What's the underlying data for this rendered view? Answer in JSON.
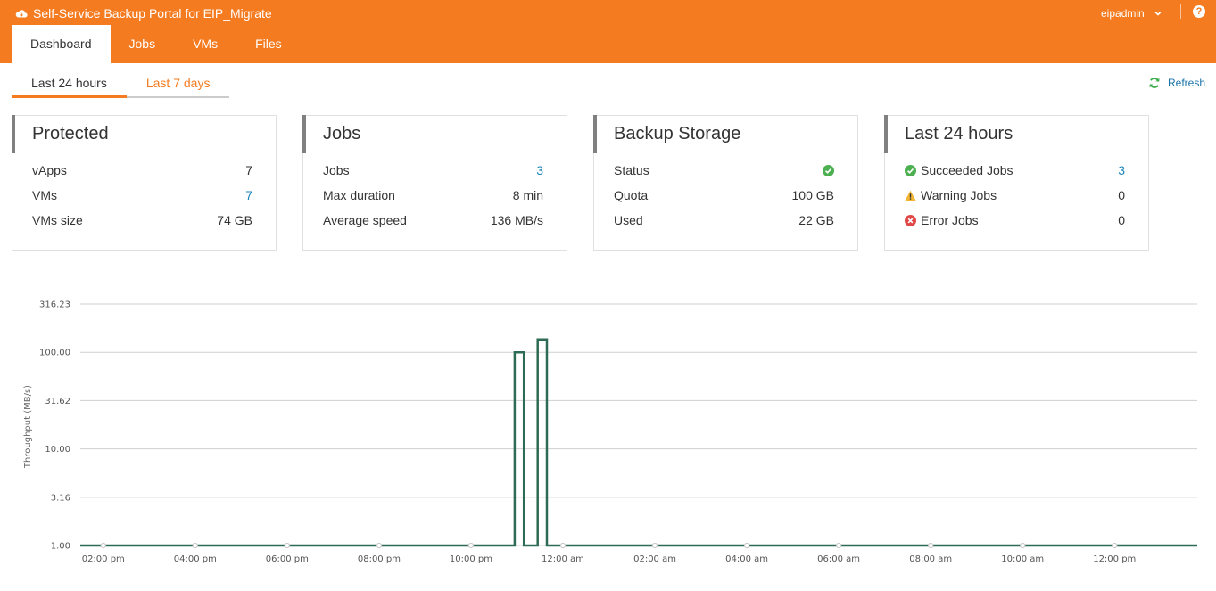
{
  "header": {
    "title": "Self-Service Backup Portal for EIP_Migrate",
    "user": "eipadmin",
    "help": "?",
    "tabs": [
      {
        "label": "Dashboard",
        "active": true
      },
      {
        "label": "Jobs"
      },
      {
        "label": "VMs"
      },
      {
        "label": "Files"
      }
    ]
  },
  "subtabs": [
    {
      "label": "Last 24 hours",
      "active": true
    },
    {
      "label": "Last 7 days"
    }
  ],
  "refresh_label": "Refresh",
  "cards": {
    "protected": {
      "title": "Protected",
      "rows": [
        {
          "label": "vApps",
          "value": "7"
        },
        {
          "label": "VMs",
          "value": "7"
        },
        {
          "label": "VMs size",
          "value": "74 GB"
        }
      ]
    },
    "jobs": {
      "title": "Jobs",
      "rows": [
        {
          "label": "Jobs",
          "value": "3"
        },
        {
          "label": "Max duration",
          "value": "8 min"
        },
        {
          "label": "Average speed",
          "value": "136 MB/s"
        }
      ]
    },
    "storage": {
      "title": "Backup Storage",
      "rows": [
        {
          "label": "Status",
          "icon": "check-circle-icon"
        },
        {
          "label": "Quota",
          "value": "100 GB"
        },
        {
          "label": "Used",
          "value": "22 GB"
        }
      ]
    },
    "last24": {
      "title": "Last 24 hours",
      "rows": [
        {
          "label": "Succeeded Jobs",
          "value": "3",
          "icon": "check-circle-icon"
        },
        {
          "label": "Warning Jobs",
          "value": "0",
          "icon": "warning-icon"
        },
        {
          "label": "Error Jobs",
          "value": "0",
          "icon": "error-icon"
        }
      ]
    }
  },
  "colors": {
    "accent": "#f47b20",
    "link": "#1a84b8",
    "success": "#4caf50",
    "warning": "#f2b632",
    "error": "#e04848",
    "series": "#2e6b54"
  },
  "chart_data": {
    "type": "line",
    "ylabel": "Throughput (MB/s)",
    "yscale": "log",
    "y_ticks": [
      "316.23",
      "100.00",
      "31.62",
      "10.00",
      "3.16",
      "1.00"
    ],
    "x_ticks": [
      "02:00 pm",
      "04:00 pm",
      "06:00 pm",
      "08:00 pm",
      "10:00 pm",
      "12:00 am",
      "02:00 am",
      "04:00 am",
      "06:00 am",
      "08:00 am",
      "10:00 am",
      "12:00 pm"
    ],
    "x_hours": [
      14,
      16,
      18,
      20,
      22,
      24,
      26,
      28,
      30,
      32,
      34,
      36
    ],
    "x_range": [
      13.5,
      37.8
    ],
    "ylim": [
      1,
      316.23
    ],
    "grid": true,
    "series": [
      {
        "points": [
          [
            13.5,
            1
          ],
          [
            22.95,
            1
          ],
          [
            22.95,
            100
          ],
          [
            23.15,
            100
          ],
          [
            23.15,
            1
          ],
          [
            23.45,
            1
          ],
          [
            23.45,
            136
          ],
          [
            23.65,
            136
          ],
          [
            23.65,
            1
          ],
          [
            37.8,
            1
          ]
        ]
      }
    ]
  }
}
